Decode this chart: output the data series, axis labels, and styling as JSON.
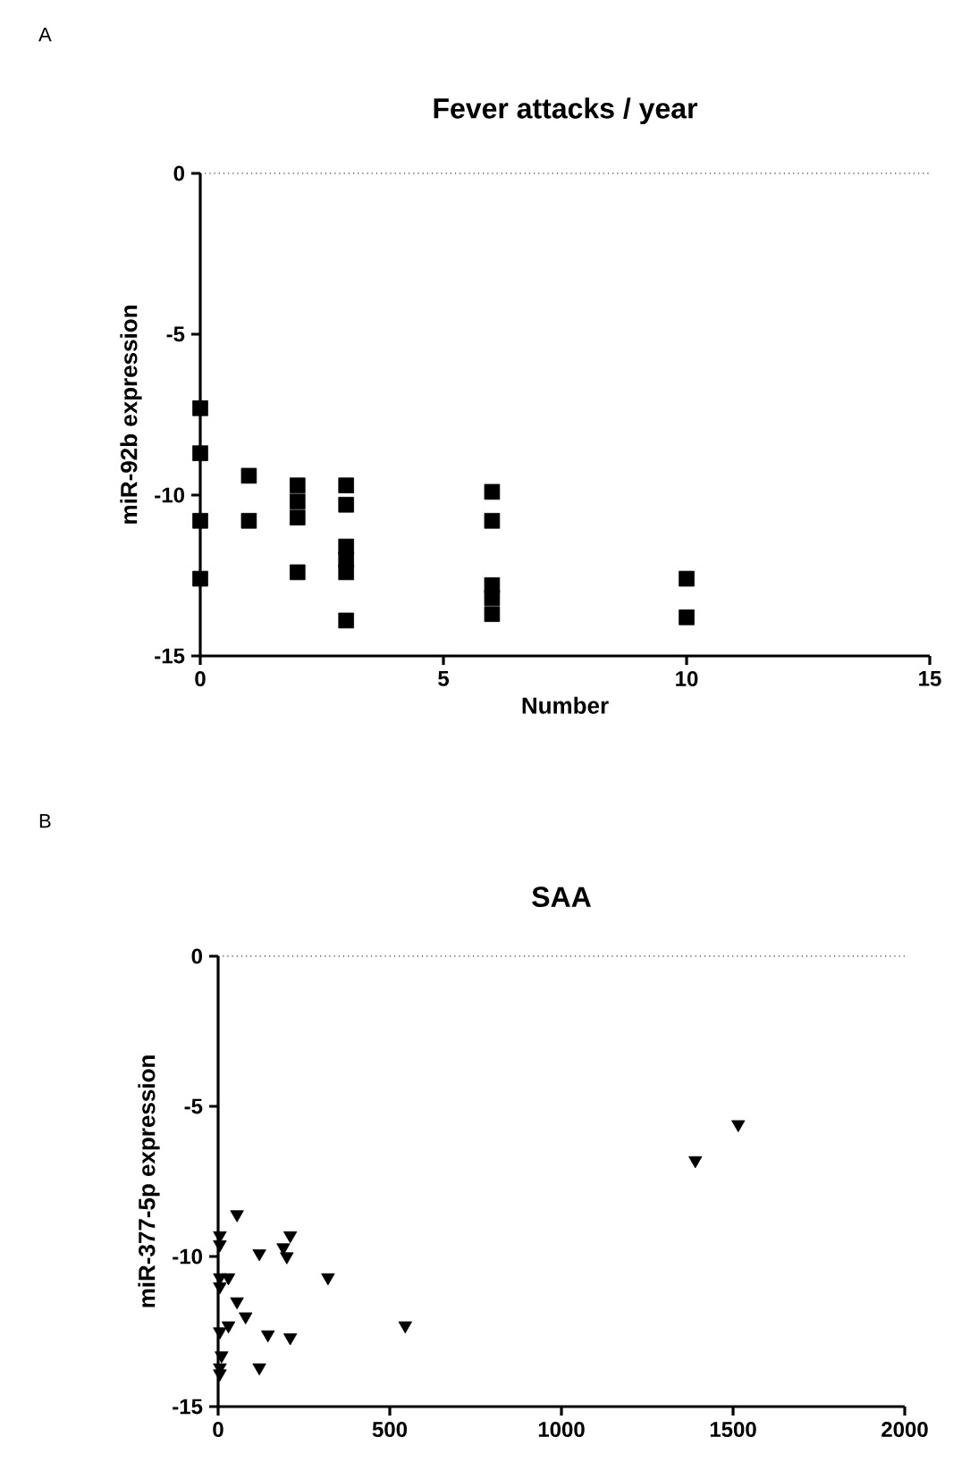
{
  "chart_data": [
    {
      "type": "scatter",
      "title": "Fever attacks / year",
      "xlabel": "Number",
      "ylabel": "miR-92b expression",
      "annotations": [
        "A"
      ],
      "marker": "square",
      "xlim": [
        0,
        15
      ],
      "ylim": [
        -15,
        0
      ],
      "xticks": [
        0,
        5,
        10,
        15
      ],
      "yticks": [
        -15,
        -10,
        -5,
        0
      ],
      "ref_lines": [
        {
          "axis": "y",
          "value": 0,
          "line_style": "dotted",
          "color": "#000000"
        }
      ],
      "series": [
        {
          "color": "#000000",
          "x": [
            0,
            0,
            0,
            0,
            1,
            1,
            2,
            2,
            2,
            2,
            3,
            3,
            3,
            3,
            3,
            3,
            6,
            6,
            6,
            6,
            6,
            10,
            10
          ],
          "values": [
            -7.3,
            -8.7,
            -10.8,
            -12.6,
            -9.4,
            -10.8,
            -9.7,
            -10.2,
            -10.7,
            -12.4,
            -9.7,
            -10.3,
            -11.6,
            -12.0,
            -12.4,
            -13.9,
            -9.9,
            -10.8,
            -12.8,
            -13.2,
            -13.7,
            -12.6,
            -13.8
          ]
        }
      ]
    },
    {
      "type": "scatter",
      "title": "SAA",
      "ylabel": "miR-377-5p expression",
      "annotations": [
        "B"
      ],
      "marker": "triangle",
      "xlim": [
        0,
        2000
      ],
      "ylim": [
        -15,
        0
      ],
      "xticks": [
        0,
        500,
        1000,
        1500,
        2000
      ],
      "yticks": [
        -15,
        -10,
        -5,
        0
      ],
      "ref_lines": [
        {
          "axis": "y",
          "value": 0,
          "line_style": "dotted",
          "color": "#000000"
        }
      ],
      "series": [
        {
          "color": "#000000",
          "x": [
            55,
            5,
            5,
            120,
            210,
            190,
            200,
            320,
            5,
            30,
            5,
            55,
            80,
            30,
            5,
            145,
            210,
            545,
            120,
            10,
            5,
            5,
            1515,
            1390
          ],
          "values": [
            -8.6,
            -9.3,
            -9.6,
            -9.9,
            -9.3,
            -9.7,
            -10.0,
            -10.7,
            -10.7,
            -10.7,
            -11.0,
            -11.5,
            -12.0,
            -12.3,
            -12.5,
            -12.6,
            -12.7,
            -12.3,
            -13.7,
            -13.3,
            -13.7,
            -13.9,
            -5.6,
            -6.8
          ]
        }
      ]
    }
  ]
}
